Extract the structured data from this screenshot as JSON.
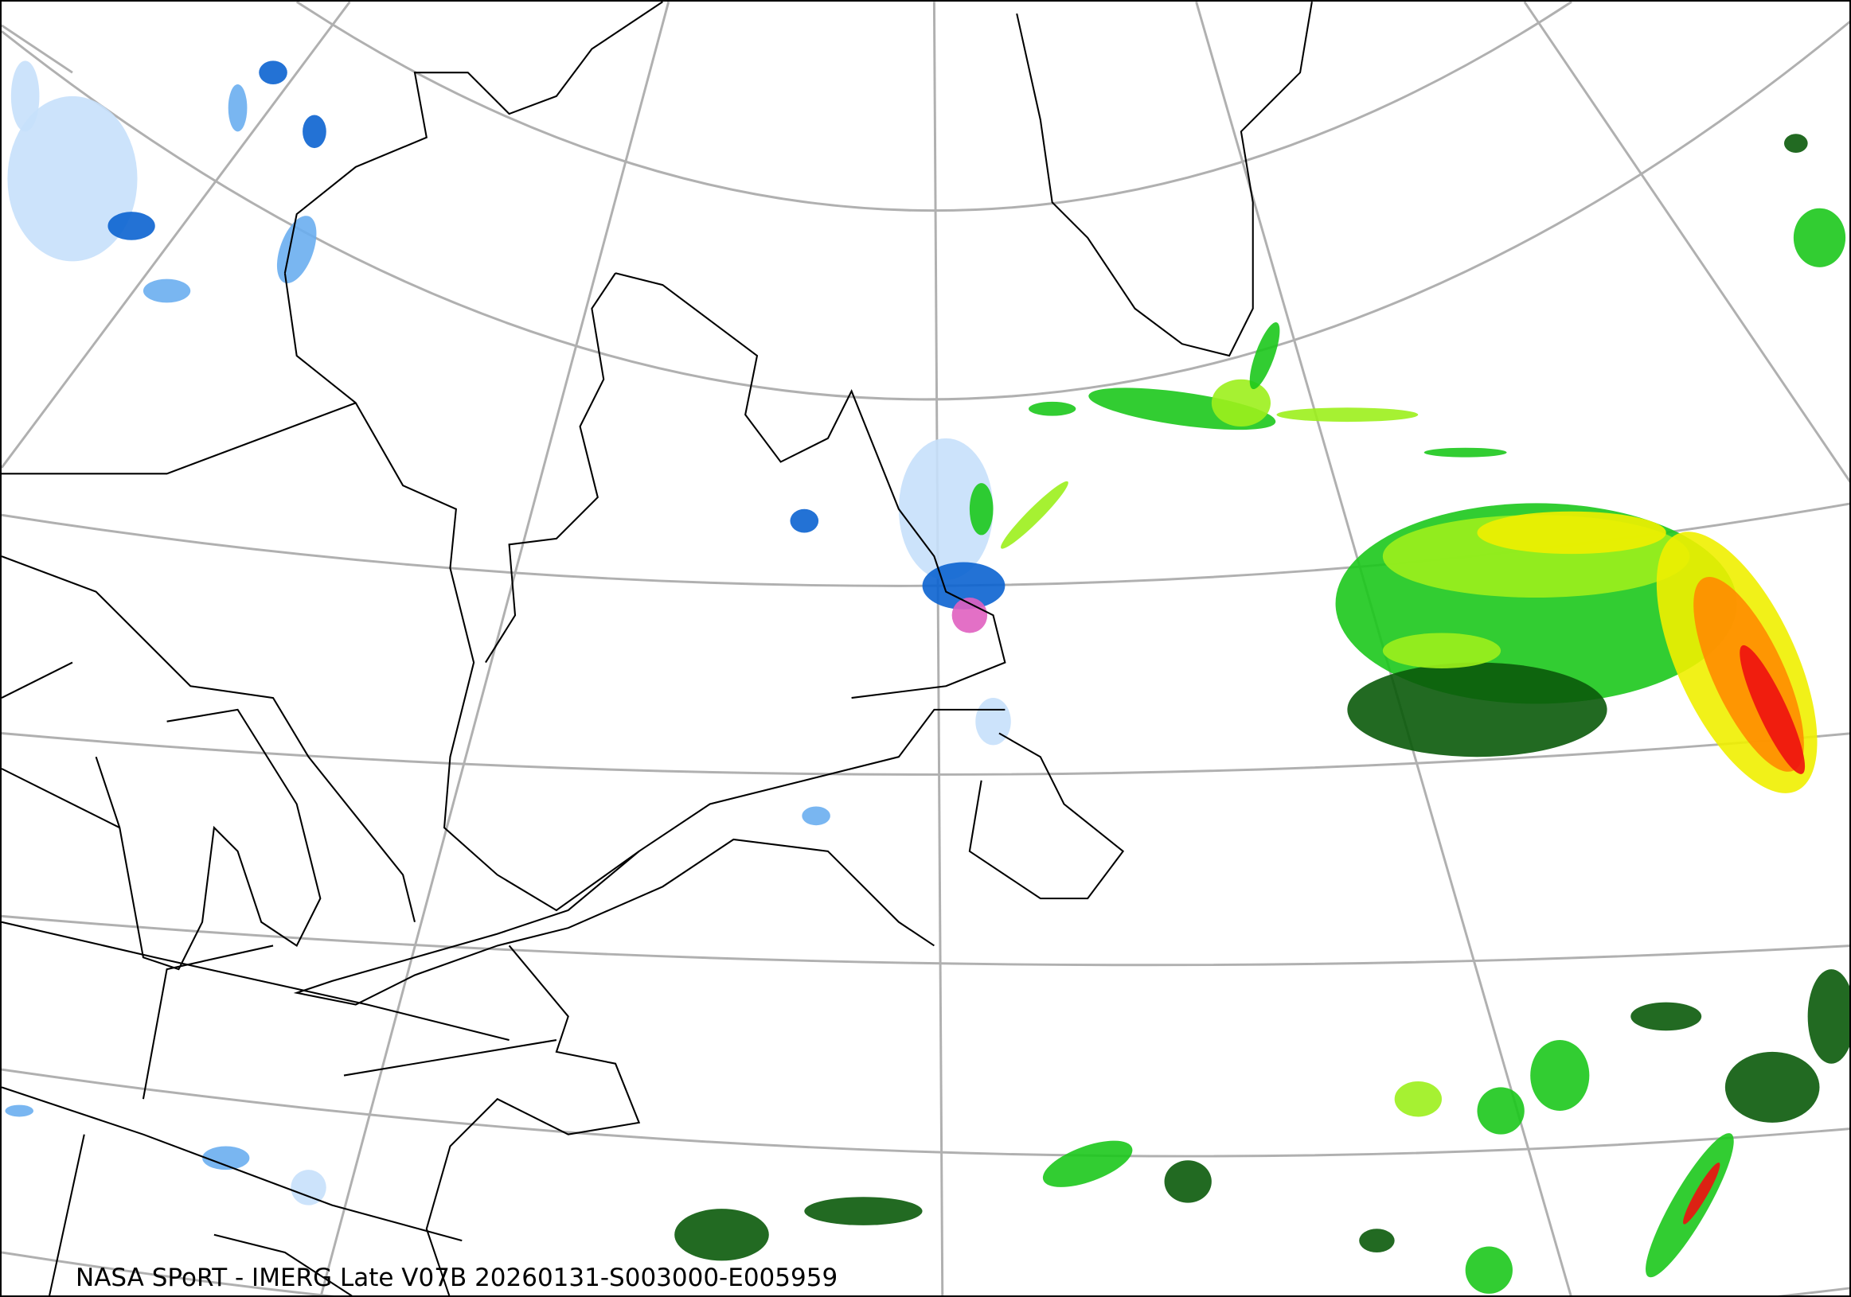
{
  "caption": "NASA SPoRT - IMERG Late V07B 20260131-S003000-E005959",
  "colors": {
    "graticule": "#b0b0b0",
    "coastline": "#000000",
    "snow_light": "#c6e0fb",
    "snow_mid": "#6aaef0",
    "snow_heavy": "#0b63d0",
    "snow_extreme": "#e060c0",
    "rain_dark": "#0a5a0a",
    "rain_green": "#1cc81c",
    "rain_light": "#9cf01c",
    "rain_yellow": "#f0f000",
    "rain_orange": "#ff8c00",
    "rain_red": "#ee1010"
  }
}
